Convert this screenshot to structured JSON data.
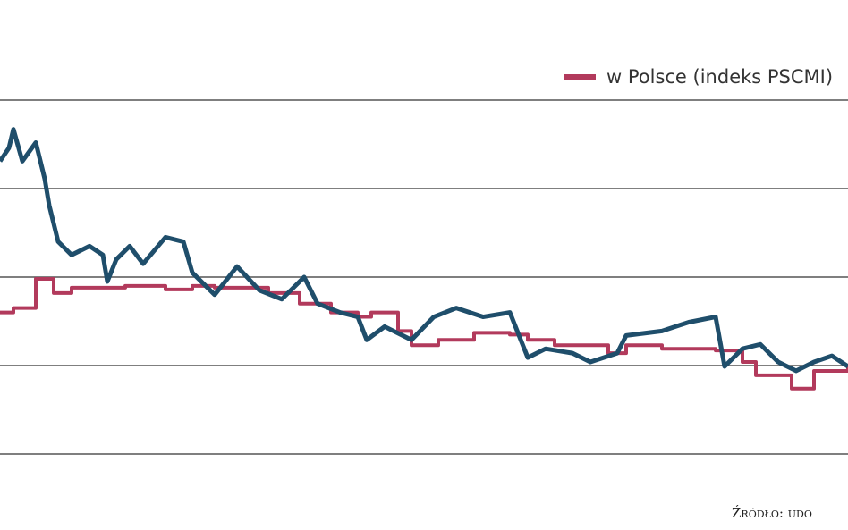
{
  "chart_data": {
    "type": "line",
    "legend_text": "w Polsce (indeks PSCMI)",
    "source": "Źródło: udo",
    "xlim": [
      0,
      948
    ],
    "ylim": [
      0,
      4
    ],
    "yticks": [
      0,
      1,
      2,
      3,
      4
    ],
    "grid": true,
    "series": [
      {
        "color": "#1f4e6b",
        "step": false,
        "x": [
          0,
          10,
          15,
          25,
          40,
          50,
          55,
          65,
          80,
          100,
          115,
          120,
          130,
          145,
          160,
          185,
          205,
          215,
          240,
          265,
          290,
          315,
          340,
          355,
          380,
          400,
          410,
          430,
          460,
          485,
          510,
          540,
          570,
          590,
          610,
          640,
          660,
          690,
          700,
          740,
          770,
          800,
          810,
          830,
          850,
          870,
          890,
          910,
          930,
          948
        ],
        "values": [
          3.31,
          3.46,
          3.67,
          3.31,
          3.52,
          3.11,
          2.81,
          2.4,
          2.25,
          2.35,
          2.25,
          1.95,
          2.2,
          2.35,
          2.15,
          2.45,
          2.4,
          2.05,
          1.8,
          2.12,
          1.85,
          1.75,
          2.0,
          1.7,
          1.6,
          1.55,
          1.29,
          1.44,
          1.29,
          1.55,
          1.65,
          1.55,
          1.6,
          1.09,
          1.19,
          1.14,
          1.04,
          1.14,
          1.34,
          1.39,
          1.49,
          1.55,
          0.99,
          1.19,
          1.24,
          1.04,
          0.94,
          1.04,
          1.11,
          0.99
        ]
      },
      {
        "name": "w Polsce (indeks PSCMI)",
        "color": "#b23a5c",
        "step": true,
        "x": [
          0,
          15,
          40,
          60,
          80,
          140,
          185,
          215,
          240,
          300,
          335,
          370,
          400,
          415,
          445,
          460,
          490,
          530,
          570,
          590,
          620,
          680,
          700,
          740,
          800,
          830,
          845,
          885,
          910,
          948
        ],
        "values": [
          1.6,
          1.65,
          1.98,
          1.82,
          1.88,
          1.9,
          1.86,
          1.9,
          1.88,
          1.82,
          1.7,
          1.6,
          1.55,
          1.6,
          1.39,
          1.23,
          1.29,
          1.37,
          1.35,
          1.29,
          1.23,
          1.14,
          1.23,
          1.19,
          1.17,
          1.04,
          0.89,
          0.74,
          0.94,
          0.99
        ]
      }
    ]
  }
}
